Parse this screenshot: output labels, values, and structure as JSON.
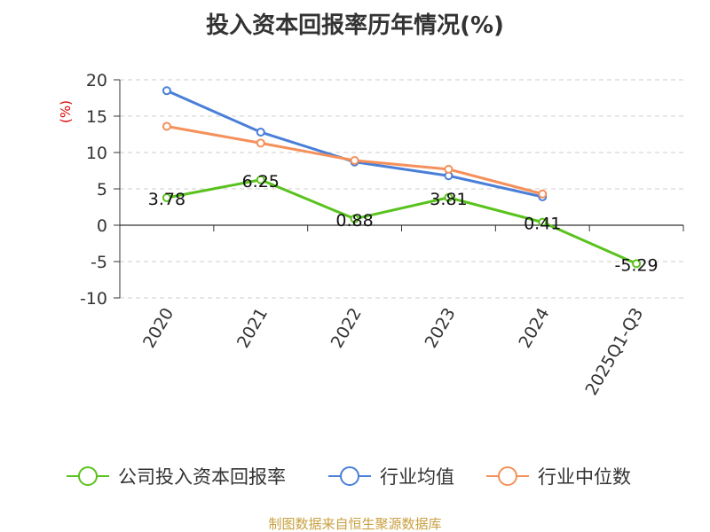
{
  "chart_data": {
    "type": "line",
    "title": "投入资本回报率历年情况(%)",
    "ylabel": "(%)",
    "categories": [
      "2020",
      "2021",
      "2022",
      "2023",
      "2024",
      "2025Q1-Q3"
    ],
    "ylim": [
      -10,
      20
    ],
    "yticks": [
      "20",
      "15",
      "10",
      "5",
      "0",
      "-5",
      "-10"
    ],
    "grid": true,
    "legend_position": "bottom",
    "series": [
      {
        "name": "公司投入资本回报率",
        "color": "#5ac21e",
        "values": [
          3.78,
          6.25,
          0.88,
          3.81,
          0.41,
          -5.29
        ],
        "labels": [
          "3.78",
          "6.25",
          "0.88",
          "3.81",
          "0.41",
          "-5.29"
        ]
      },
      {
        "name": "行业均值",
        "color": "#4a7fd8",
        "values": [
          18.5,
          12.8,
          8.7,
          6.8,
          3.9,
          null
        ]
      },
      {
        "name": "行业中位数",
        "color": "#f5905a",
        "values": [
          13.6,
          11.3,
          8.9,
          7.7,
          4.3,
          null
        ]
      }
    ],
    "source": "制图数据来自恒生聚源数据库",
    "ylabel_color": "#dd0000",
    "source_color": "#c8a040"
  }
}
